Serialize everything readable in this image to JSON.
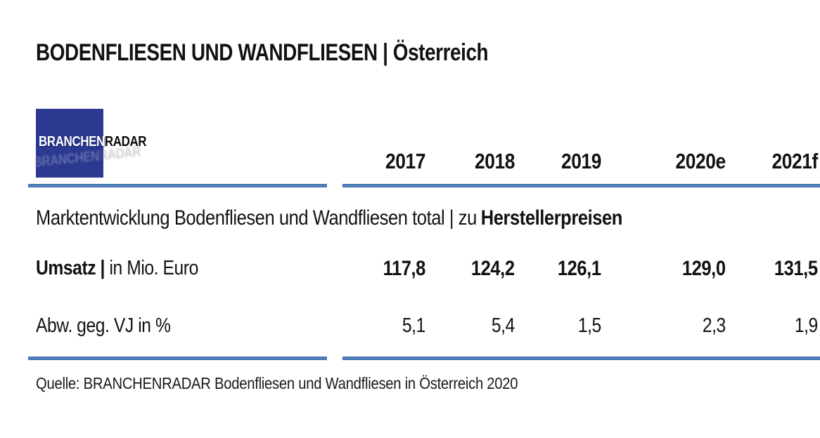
{
  "header": {
    "title": "BODENFLIESEN UND WANDFLIESEN | Österreich"
  },
  "logo": {
    "text_primary": "BRANCHEN",
    "text_secondary": "RADAR"
  },
  "colors": {
    "rule_blue": "#4f81bd",
    "logo_blue": "#2b3990",
    "text": "#121212"
  },
  "table": {
    "year_columns": [
      "2017",
      "2018",
      "2019",
      "2020e",
      "2021f"
    ],
    "section_title_regular": "Marktentwicklung Bodenfliesen und Wandfliesen total | zu",
    "section_title_bold": "Herstellerpreisen",
    "rows": [
      {
        "label_bold": "Umsatz |",
        "label_regular": "in Mio. Euro",
        "values": [
          "117,8",
          "124,2",
          "126,1",
          "129,0",
          "131,5"
        ]
      },
      {
        "label_bold": "",
        "label_regular": "Abw. geg. VJ in %",
        "values": [
          "5,1",
          "5,4",
          "1,5",
          "2,3",
          "1,9"
        ]
      }
    ]
  },
  "footer": {
    "source": "Quelle: BRANCHENRADAR Bodenfliesen und Wandfliesen in Österreich 2020"
  },
  "chart_data": {
    "type": "table",
    "title": "BODENFLIESEN UND WANDFLIESEN | Österreich",
    "subtitle": "Marktentwicklung Bodenfliesen und Wandfliesen total | zu Herstellerpreisen",
    "categories": [
      "2017",
      "2018",
      "2019",
      "2020e",
      "2021f"
    ],
    "series": [
      {
        "name": "Umsatz | in Mio. Euro",
        "values": [
          117.8,
          124.2,
          126.1,
          129.0,
          131.5
        ]
      },
      {
        "name": "Abw. geg. VJ in %",
        "values": [
          5.1,
          5.4,
          1.5,
          2.3,
          1.9
        ]
      }
    ],
    "source": "Quelle: BRANCHENRADAR Bodenfliesen und Wandfliesen in Österreich 2020"
  }
}
